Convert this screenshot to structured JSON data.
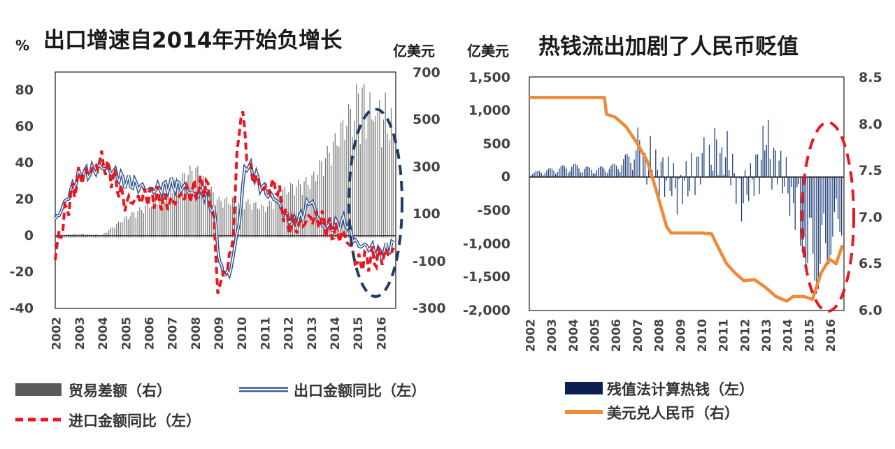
{
  "chart_data": [
    {
      "type": "bar+line",
      "title": "出口增速自2014年开始负增长",
      "left_unit": "%",
      "right_unit": "亿美元",
      "y_left_lim": [
        -40,
        90
      ],
      "y_left_ticks": [
        "80",
        "60",
        "40",
        "20",
        "0",
        "-20",
        "-40"
      ],
      "y_right_lim": [
        -300,
        700
      ],
      "y_right_ticks": [
        "700",
        "500",
        "300",
        "100",
        "-100",
        "-300"
      ],
      "x_range": [
        2002,
        2016.67
      ],
      "x_ticks": [
        "2002",
        "2003",
        "2004",
        "2005",
        "2006",
        "2007",
        "2008",
        "2009",
        "2010",
        "2011",
        "2012",
        "2013",
        "2014",
        "2015",
        "2016"
      ],
      "annotation": "dashed ellipse highlighting 2015–2016",
      "series": [
        {
          "name": "贸易差额（右）",
          "axis": "right",
          "kind": "bar",
          "anchors": [
            [
              2002,
              10
            ],
            [
              2003,
              15
            ],
            [
              2004,
              10
            ],
            [
              2005,
              80
            ],
            [
              2006,
              130
            ],
            [
              2007,
              210
            ],
            [
              2008,
              280
            ],
            [
              2009,
              150
            ],
            [
              2010,
              150
            ],
            [
              2011,
              120
            ],
            [
              2012,
              200
            ],
            [
              2013,
              230
            ],
            [
              2014,
              380
            ],
            [
              2015,
              560
            ],
            [
              2016.3,
              480
            ],
            [
              2016.6,
              430
            ]
          ]
        },
        {
          "name": "出口金额同比（左）",
          "axis": "left",
          "kind": "line",
          "anchors": [
            [
              2002,
              8
            ],
            [
              2002.5,
              20
            ],
            [
              2003,
              33
            ],
            [
              2003.5,
              35
            ],
            [
              2004,
              38
            ],
            [
              2004.5,
              35
            ],
            [
              2005,
              30
            ],
            [
              2005.5,
              28
            ],
            [
              2006,
              25
            ],
            [
              2006.5,
              26
            ],
            [
              2007,
              28
            ],
            [
              2007.5,
              27
            ],
            [
              2008,
              22
            ],
            [
              2008.5,
              24
            ],
            [
              2008.9,
              10
            ],
            [
              2009.1,
              -18
            ],
            [
              2009.5,
              -22
            ],
            [
              2009.9,
              5
            ],
            [
              2010.2,
              40
            ],
            [
              2010.5,
              35
            ],
            [
              2011,
              25
            ],
            [
              2011.5,
              20
            ],
            [
              2012,
              10
            ],
            [
              2012.5,
              8
            ],
            [
              2013,
              20
            ],
            [
              2013.5,
              5
            ],
            [
              2014,
              5
            ],
            [
              2014.5,
              8
            ],
            [
              2015,
              -5
            ],
            [
              2015.5,
              -6
            ],
            [
              2016,
              -10
            ],
            [
              2016.6,
              -5
            ]
          ]
        },
        {
          "name": "进口金额同比（左）",
          "axis": "left",
          "kind": "dashed-line",
          "anchors": [
            [
              2002,
              -10
            ],
            [
              2002.5,
              15
            ],
            [
              2003,
              32
            ],
            [
              2003.5,
              35
            ],
            [
              2004,
              42
            ],
            [
              2004.3,
              35
            ],
            [
              2004.6,
              30
            ],
            [
              2005,
              18
            ],
            [
              2005.5,
              20
            ],
            [
              2006,
              22
            ],
            [
              2006.5,
              20
            ],
            [
              2007,
              18
            ],
            [
              2007.5,
              22
            ],
            [
              2008,
              25
            ],
            [
              2008.5,
              28
            ],
            [
              2008.8,
              15
            ],
            [
              2009,
              -30
            ],
            [
              2009.3,
              -20
            ],
            [
              2009.6,
              -10
            ],
            [
              2009.9,
              55
            ],
            [
              2010,
              70
            ],
            [
              2010.4,
              35
            ],
            [
              2011,
              25
            ],
            [
              2011.5,
              28
            ],
            [
              2012,
              7
            ],
            [
              2012.5,
              5
            ],
            [
              2013,
              10
            ],
            [
              2013.5,
              8
            ],
            [
              2014,
              2
            ],
            [
              2014.5,
              0
            ],
            [
              2015,
              -15
            ],
            [
              2015.5,
              -13
            ],
            [
              2016,
              -12
            ],
            [
              2016.6,
              -8
            ]
          ]
        }
      ]
    },
    {
      "type": "bar+line",
      "title": "热钱流出加剧了人民币贬值",
      "left_unit": "亿美元",
      "y_left_lim": [
        -2000,
        1500
      ],
      "y_left_ticks": [
        "1,500",
        "1,000",
        "500",
        "0",
        "-500",
        "-1,000",
        "-1,500",
        "-2,000"
      ],
      "y_right_lim": [
        6.0,
        8.5
      ],
      "y_right_ticks": [
        "8.5",
        "8.0",
        "7.5",
        "7.0",
        "6.5",
        "6.0"
      ],
      "x_range": [
        2002,
        2016.67
      ],
      "x_ticks": [
        "2002",
        "2003",
        "2004",
        "2005",
        "2006",
        "2007",
        "2008",
        "2009",
        "2010",
        "2011",
        "2012",
        "2013",
        "2014",
        "2015",
        "2016"
      ],
      "annotation": "red dashed ellipse highlighting 2015–2016",
      "series": [
        {
          "name": "残值法计算热钱（左）",
          "axis": "left",
          "kind": "bar",
          "anchors": [
            [
              2002,
              50
            ],
            [
              2003,
              100
            ],
            [
              2004,
              150
            ],
            [
              2005,
              100
            ],
            [
              2006,
              150
            ],
            [
              2007,
              350
            ],
            [
              2008,
              100
            ],
            [
              2009,
              -200
            ],
            [
              2010,
              200
            ],
            [
              2011,
              400
            ],
            [
              2012,
              -350
            ],
            [
              2013,
              500
            ],
            [
              2014,
              -100
            ],
            [
              2015,
              -1100
            ],
            [
              2015.5,
              -1300
            ],
            [
              2016,
              -900
            ],
            [
              2016.6,
              -600
            ]
          ]
        },
        {
          "name": "美元兑人民币（右）",
          "axis": "right",
          "kind": "line",
          "points": [
            [
              2002,
              8.28
            ],
            [
              2005.5,
              8.28
            ],
            [
              2005.6,
              8.1
            ],
            [
              2006,
              8.07
            ],
            [
              2006.5,
              7.97
            ],
            [
              2007,
              7.8
            ],
            [
              2007.5,
              7.6
            ],
            [
              2007.9,
              7.3
            ],
            [
              2008.4,
              6.9
            ],
            [
              2008.6,
              6.83
            ],
            [
              2009,
              6.83
            ],
            [
              2010,
              6.83
            ],
            [
              2010.5,
              6.82
            ],
            [
              2010.8,
              6.68
            ],
            [
              2011.2,
              6.5
            ],
            [
              2011.6,
              6.4
            ],
            [
              2012,
              6.32
            ],
            [
              2012.5,
              6.33
            ],
            [
              2013,
              6.25
            ],
            [
              2013.5,
              6.15
            ],
            [
              2014,
              6.1
            ],
            [
              2014.3,
              6.15
            ],
            [
              2014.8,
              6.15
            ],
            [
              2015.2,
              6.12
            ],
            [
              2015.6,
              6.4
            ],
            [
              2016,
              6.55
            ],
            [
              2016.3,
              6.5
            ],
            [
              2016.6,
              6.7
            ]
          ]
        }
      ]
    }
  ]
}
